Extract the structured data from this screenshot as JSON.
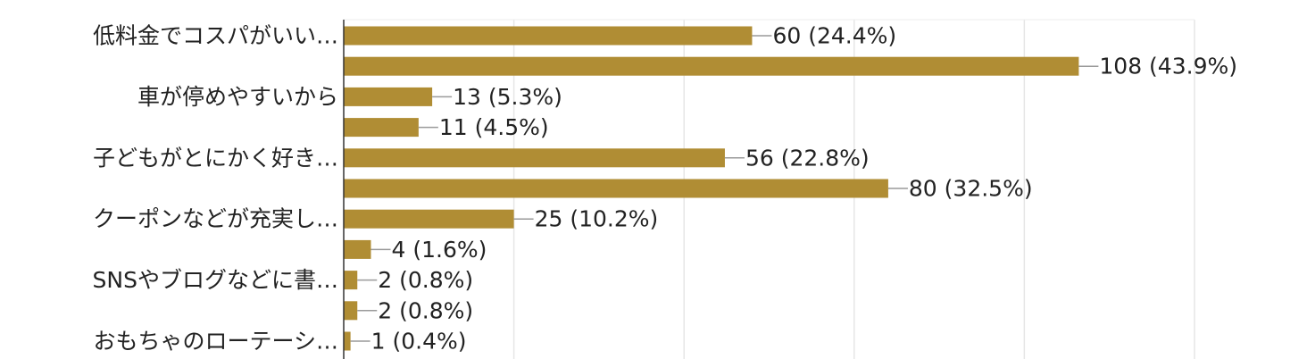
{
  "chart_data": {
    "type": "bar",
    "orientation": "horizontal",
    "bar_color": "#b08d34",
    "grid": true,
    "categories": [
      "低料金でコスパがいい…",
      "",
      "車が停めやすいから",
      "",
      "子どもがとにかく好き…",
      "",
      "クーポンなどが充実し…",
      "",
      "SNSやブログなどに書…",
      "",
      "おもちゃのローテーシ…"
    ],
    "values": [
      60,
      108,
      13,
      11,
      56,
      80,
      25,
      4,
      2,
      2,
      1
    ],
    "data_labels": [
      "60 (24.4%)",
      "108 (43.9%)",
      "13 (5.3%)",
      "11 (4.5%)",
      "56 (22.8%)",
      "80 (32.5%)",
      "25 (10.2%)",
      "4 (1.6%)",
      "2 (0.8%)",
      "2 (0.8%)",
      "1 (0.4%)"
    ],
    "xlim": [
      0,
      125
    ]
  }
}
